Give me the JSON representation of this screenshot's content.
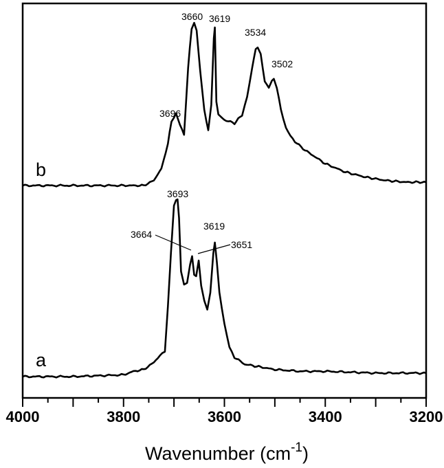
{
  "chart_data": {
    "type": "line",
    "title": "",
    "xlabel": "Wavenumber (cm-1)",
    "xlabel_main": "Wavenumber (cm",
    "xlabel_sup": "-1",
    "xlabel_close": ")",
    "ylabel": "",
    "xlim": [
      4000,
      3200
    ],
    "x_reversed": true,
    "grid": false,
    "y_ticks": false,
    "x_ticks": [
      4000,
      3800,
      3600,
      3400,
      3200
    ],
    "x_tick_labels": [
      "4000",
      "3800",
      "3600",
      "3400",
      "3200"
    ],
    "x_minor_ticks": [
      3950,
      3900,
      3850,
      3750,
      3700,
      3650,
      3550,
      3500,
      3450,
      3350,
      3300,
      3250
    ],
    "series": [
      {
        "name": "b",
        "label": "b",
        "peaks": [
          3696,
          3660,
          3619,
          3534,
          3502
        ],
        "peak_labels": [
          "3696",
          "3660",
          "3619",
          "3534",
          "3502"
        ],
        "x": [
          4000,
          3900,
          3800,
          3760,
          3740,
          3725,
          3712,
          3705,
          3696,
          3688,
          3680,
          3672,
          3665,
          3660,
          3655,
          3648,
          3640,
          3632,
          3626,
          3621,
          3619,
          3616,
          3612,
          3600,
          3580,
          3565,
          3555,
          3545,
          3538,
          3534,
          3528,
          3520,
          3512,
          3506,
          3502,
          3496,
          3488,
          3478,
          3460,
          3440,
          3420,
          3400,
          3360,
          3320,
          3280,
          3240,
          3200
        ],
        "y_rel": [
          0.0,
          0.0,
          0.0,
          0.0,
          0.03,
          0.1,
          0.25,
          0.38,
          0.43,
          0.36,
          0.3,
          0.7,
          0.93,
          0.97,
          0.92,
          0.68,
          0.45,
          0.33,
          0.48,
          0.88,
          0.94,
          0.5,
          0.42,
          0.39,
          0.37,
          0.42,
          0.53,
          0.7,
          0.81,
          0.82,
          0.78,
          0.62,
          0.58,
          0.62,
          0.63,
          0.58,
          0.45,
          0.34,
          0.26,
          0.21,
          0.17,
          0.13,
          0.08,
          0.05,
          0.03,
          0.02,
          0.02
        ]
      },
      {
        "name": "a",
        "label": "a",
        "peaks": [
          3693,
          3664,
          3651,
          3619
        ],
        "peak_labels": [
          "3693",
          "3664",
          "3651",
          "3619"
        ],
        "x": [
          4000,
          3900,
          3800,
          3780,
          3760,
          3740,
          3728,
          3718,
          3712,
          3706,
          3700,
          3696,
          3693,
          3690,
          3686,
          3680,
          3674,
          3668,
          3664,
          3660,
          3656,
          3651,
          3646,
          3640,
          3634,
          3628,
          3622,
          3619,
          3615,
          3610,
          3600,
          3590,
          3580,
          3560,
          3540,
          3500,
          3450,
          3400,
          3300,
          3200
        ],
        "y_rel": [
          0.0,
          0.0,
          0.01,
          0.03,
          0.04,
          0.08,
          0.12,
          0.14,
          0.4,
          0.7,
          0.97,
          1.0,
          1.0,
          0.9,
          0.6,
          0.52,
          0.53,
          0.63,
          0.68,
          0.58,
          0.57,
          0.66,
          0.52,
          0.43,
          0.38,
          0.47,
          0.7,
          0.76,
          0.65,
          0.48,
          0.3,
          0.17,
          0.11,
          0.07,
          0.06,
          0.04,
          0.03,
          0.03,
          0.02,
          0.02
        ]
      }
    ]
  }
}
